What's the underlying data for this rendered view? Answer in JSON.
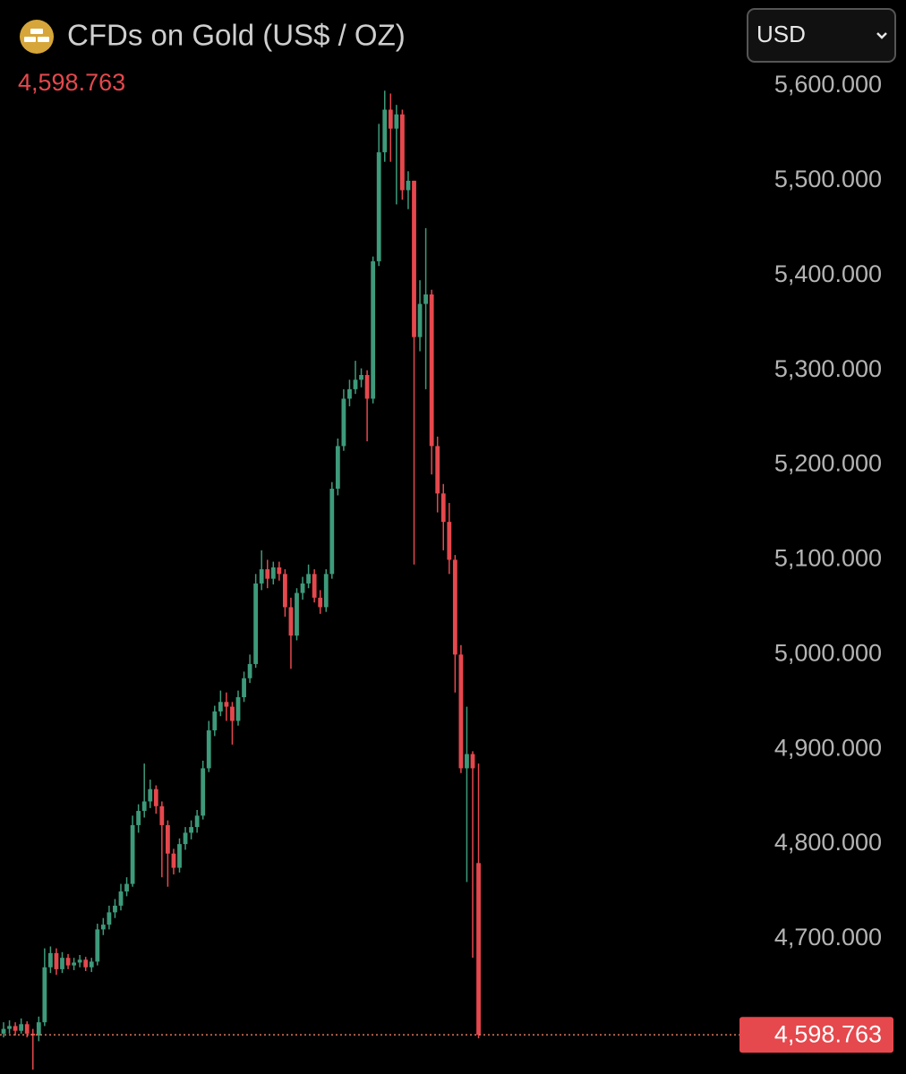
{
  "chart_data": {
    "type": "candlestick",
    "title": "CFDs on Gold (US$ / OZ)",
    "currency": "USD",
    "last_price": {
      "value": 4598.763,
      "label": "4,598.763"
    },
    "up_color": "#3d9a7a",
    "down_color": "#e5484d",
    "grid": false,
    "ylim": [
      4557.4,
      5690.7
    ],
    "yticks": [
      {
        "value": 4700,
        "label": "4,700.000"
      },
      {
        "value": 4800,
        "label": "4,800.000"
      },
      {
        "value": 4900,
        "label": "4,900.000"
      },
      {
        "value": 5000,
        "label": "5,000.000"
      },
      {
        "value": 5100,
        "label": "5,100.000"
      },
      {
        "value": 5200,
        "label": "5,200.000"
      },
      {
        "value": 5300,
        "label": "5,300.000"
      },
      {
        "value": 5400,
        "label": "5,400.000"
      },
      {
        "value": 5500,
        "label": "5,500.000"
      },
      {
        "value": 5600,
        "label": "5,600.000"
      }
    ],
    "open": [
      4600,
      4605,
      4608,
      4603,
      4610,
      4600,
      4598,
      4612,
      4670,
      4685,
      4668,
      4680,
      4672,
      4675,
      4678,
      4670,
      4676,
      4710,
      4715,
      4728,
      4735,
      4750,
      4758,
      4820,
      4835,
      4845,
      4858,
      4840,
      4820,
      4790,
      4775,
      4800,
      4812,
      4818,
      4830,
      4880,
      4920,
      4940,
      4950,
      4945,
      4930,
      4955,
      4975,
      4990,
      5075,
      5090,
      5080,
      5092,
      5085,
      5050,
      5020,
      5065,
      5075,
      5085,
      5060,
      5050,
      5085,
      5175,
      5220,
      5270,
      5280,
      5290,
      5295,
      5270,
      5415,
      5530,
      5575,
      5555,
      5570,
      5490,
      5500,
      5335,
      5370,
      5380,
      5220,
      5170,
      5140,
      5100,
      5000,
      4880,
      4895,
      4780
    ],
    "high": [
      4612,
      4614,
      4612,
      4616,
      4613,
      4605,
      4618,
      4690,
      4692,
      4690,
      4686,
      4684,
      4680,
      4683,
      4681,
      4680,
      4716,
      4722,
      4735,
      4742,
      4758,
      4765,
      4830,
      4842,
      4885,
      4868,
      4862,
      4845,
      4825,
      4795,
      4806,
      4818,
      4825,
      4836,
      4888,
      4930,
      4946,
      4962,
      4960,
      4950,
      4962,
      4982,
      5000,
      5085,
      5110,
      5100,
      5098,
      5098,
      5090,
      5060,
      5070,
      5082,
      5095,
      5090,
      5068,
      5090,
      5182,
      5228,
      5280,
      5290,
      5310,
      5302,
      5300,
      5420,
      5560,
      5595,
      5592,
      5580,
      5575,
      5510,
      5500,
      5395,
      5450,
      5385,
      5230,
      5180,
      5160,
      5105,
      5010,
      4945,
      4898,
      4885
    ],
    "low": [
      4596,
      4600,
      4598,
      4600,
      4596,
      4562,
      4592,
      4608,
      4664,
      4662,
      4664,
      4668,
      4667,
      4670,
      4666,
      4665,
      4672,
      4704,
      4710,
      4722,
      4730,
      4745,
      4755,
      4812,
      4828,
      4838,
      4832,
      4765,
      4755,
      4768,
      4770,
      4794,
      4805,
      4812,
      4826,
      4876,
      4914,
      4935,
      4930,
      4905,
      4925,
      4950,
      4970,
      4986,
      5068,
      5070,
      5074,
      5078,
      5040,
      4985,
      5015,
      5058,
      5070,
      5055,
      5043,
      5045,
      5080,
      5168,
      5215,
      5262,
      5275,
      5282,
      5225,
      5265,
      5410,
      5520,
      5520,
      5475,
      5480,
      5470,
      5095,
      5320,
      5280,
      5190,
      5150,
      5110,
      5085,
      4960,
      4875,
      4760,
      4680,
      4595
    ],
    "close": [
      4605,
      4608,
      4603,
      4610,
      4600,
      4598,
      4612,
      4670,
      4685,
      4668,
      4680,
      4672,
      4675,
      4678,
      4670,
      4676,
      4710,
      4715,
      4728,
      4735,
      4750,
      4758,
      4820,
      4835,
      4845,
      4858,
      4840,
      4820,
      4790,
      4775,
      4800,
      4812,
      4818,
      4830,
      4880,
      4920,
      4940,
      4950,
      4945,
      4930,
      4955,
      4975,
      4990,
      5075,
      5090,
      5080,
      5092,
      5085,
      5050,
      5020,
      5065,
      5075,
      5085,
      5060,
      5050,
      5085,
      5175,
      5220,
      5270,
      5280,
      5290,
      5295,
      5270,
      5415,
      5530,
      5575,
      5555,
      5570,
      5490,
      5500,
      5335,
      5370,
      5380,
      5220,
      5170,
      5140,
      5100,
      5000,
      4880,
      4895,
      4880,
      4598.763
    ]
  }
}
